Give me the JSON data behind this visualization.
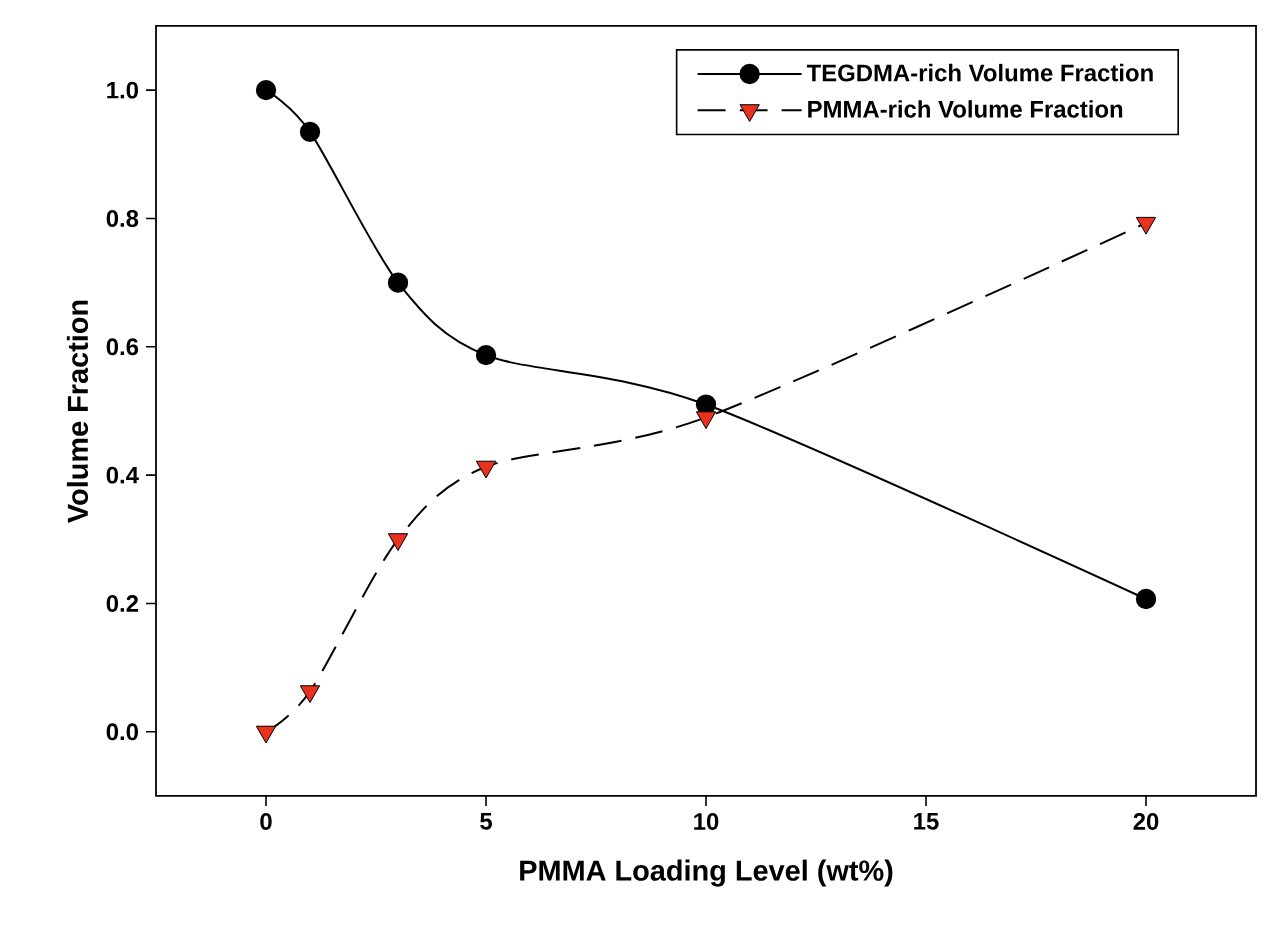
{
  "chart_data": {
    "type": "line",
    "xlabel": "PMMA Loading Level (wt%)",
    "ylabel": "Volume Fraction",
    "x": [
      0,
      1,
      3,
      5,
      10,
      20
    ],
    "series": [
      {
        "name": "TEGDMA-rich Volume Fraction",
        "color": "#000000",
        "marker": "circle",
        "line_style": "solid",
        "values": [
          1.0,
          0.935,
          0.7,
          0.587,
          0.51,
          0.207
        ]
      },
      {
        "name": "PMMA-rich Volume Fraction",
        "color": "#e8321e",
        "marker": "triangle",
        "line_style": "dashed",
        "values": [
          0.0,
          0.063,
          0.3,
          0.413,
          0.49,
          0.793
        ]
      }
    ],
    "xlim": [
      -2.5,
      22.5
    ],
    "ylim": [
      -0.1,
      1.1
    ],
    "xticks": [
      0,
      5,
      10,
      15,
      20
    ],
    "yticks": [
      {
        "value": 0,
        "label": "0.0"
      },
      {
        "value": 0.2,
        "label": "0.2"
      },
      {
        "value": 0.4,
        "label": "0.4"
      },
      {
        "value": 0.6,
        "label": "0.6"
      },
      {
        "value": 0.8,
        "label": "0.8"
      },
      {
        "value": 1.0,
        "label": "1.0"
      }
    ],
    "grid": false,
    "legend": "top right"
  }
}
